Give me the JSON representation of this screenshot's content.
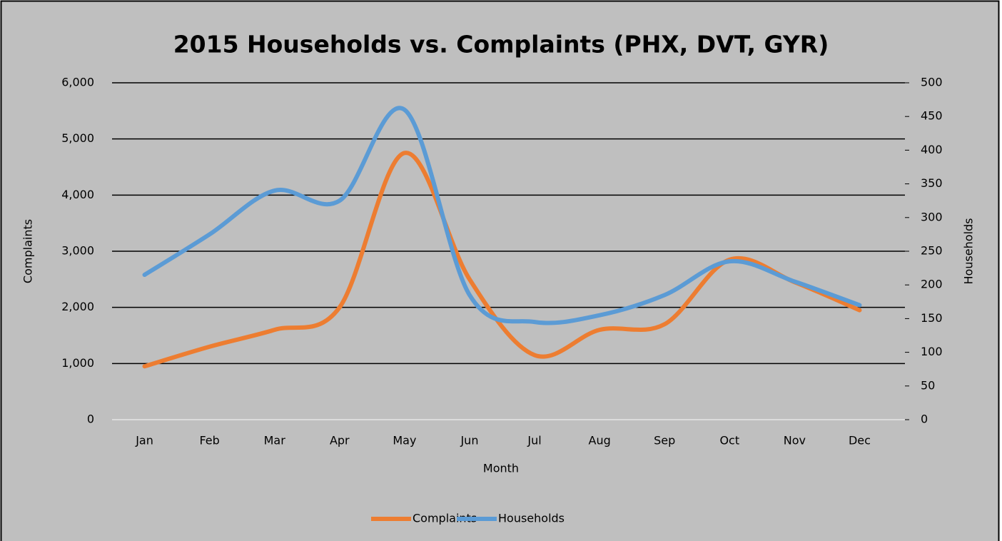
{
  "chart_data": {
    "type": "line",
    "title": "2015 Households vs. Complaints (PHX, DVT, GYR)",
    "x_label": "Month",
    "y_label": "Complaints",
    "y2_label": "Households",
    "categories": [
      "Jan",
      "Feb",
      "Mar",
      "Apr",
      "May",
      "Jun",
      "Jul",
      "Aug",
      "Sep",
      "Oct",
      "Nov",
      "Dec"
    ],
    "series": [
      {
        "name": "Complaints",
        "color": "#ed7d31",
        "values": [
          950,
          1300,
          1600,
          2000,
          4750,
          2500,
          1150,
          1600,
          1700,
          2850,
          2450,
          1950
        ]
      },
      {
        "name": "Households",
        "color": "#5b9bd5",
        "axis": "y2",
        "values": [
          215,
          275,
          340,
          325,
          460,
          185,
          145,
          155,
          185,
          235,
          205,
          170
        ]
      }
    ],
    "ylim": [
      0,
      6000
    ],
    "yticks": [
      0,
      {
        "value": 1000,
        "label": "1,000"
      },
      {
        "value": 2000,
        "label": "2,000"
      },
      {
        "value": 3000,
        "label": "3,000"
      },
      {
        "value": 4000,
        "label": "4,000"
      },
      {
        "value": 5000,
        "label": "5,000"
      },
      {
        "value": 6000,
        "label": "6,000"
      }
    ],
    "y2lim": [
      0,
      500
    ],
    "y2ticks": [
      0,
      50,
      100,
      150,
      200,
      250,
      300,
      350,
      400,
      450,
      500
    ],
    "grid": true,
    "smooth": true,
    "legend": "bottom"
  }
}
